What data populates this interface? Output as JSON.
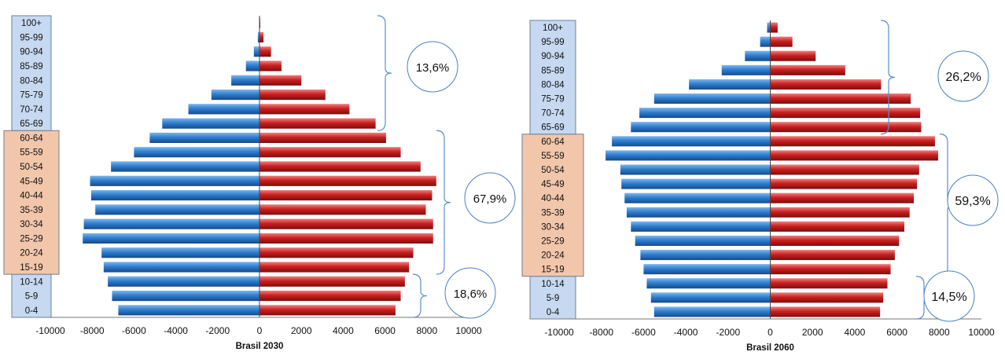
{
  "chart_data": [
    {
      "type": "bar",
      "orientation": "horizontal",
      "title": "",
      "xlabel": "Brasil 2030",
      "ylabel": "",
      "xlim": [
        -10000,
        10000
      ],
      "xticks": [
        "-10000",
        "-8000",
        "-6000",
        "-4000",
        "-2000",
        "0",
        "2000",
        "4000",
        "6000",
        "8000",
        "10000"
      ],
      "categories": [
        "0-4",
        "5-9",
        "10-14",
        "15-19",
        "20-24",
        "25-29",
        "30-34",
        "35-39",
        "40-44",
        "45-49",
        "50-54",
        "55-59",
        "60-64",
        "65-69",
        "70-74",
        "75-79",
        "80-84",
        "85-89",
        "90-94",
        "95-99",
        "100+"
      ],
      "series": [
        {
          "color": "#2e7fd0",
          "values": [
            -6750,
            -7050,
            -7250,
            -7450,
            -7550,
            -8450,
            -8400,
            -7850,
            -8050,
            -8100,
            -7100,
            -6000,
            -5250,
            -4650,
            -3400,
            -2300,
            -1350,
            -650,
            -270,
            -80,
            -15
          ]
        },
        {
          "color": "#cc1f1f",
          "values": [
            6500,
            6750,
            6950,
            7150,
            7350,
            8300,
            8300,
            7950,
            8250,
            8450,
            7700,
            6750,
            6050,
            5550,
            4300,
            3150,
            2000,
            1050,
            550,
            190,
            35
          ]
        }
      ],
      "groups": [
        {
          "label": "18,6%",
          "color": "#c6d9f1",
          "categories": [
            "0-4",
            "5-9",
            "10-14"
          ]
        },
        {
          "label": "67,9%",
          "color": "#f2c6ab",
          "categories": [
            "15-19",
            "20-24",
            "25-29",
            "30-34",
            "35-39",
            "40-44",
            "45-49",
            "50-54",
            "55-59",
            "60-64"
          ]
        },
        {
          "label": "13,6%",
          "color": "#c6d9f1",
          "categories": [
            "65-69",
            "70-74",
            "75-79",
            "80-84",
            "85-89",
            "90-94",
            "95-99",
            "100+"
          ]
        }
      ]
    },
    {
      "type": "bar",
      "orientation": "horizontal",
      "title": "",
      "xlabel": "Brasil 2060",
      "ylabel": "",
      "xlim": [
        -10000,
        10000
      ],
      "xticks": [
        "-10000",
        "-8000",
        "-6000",
        "-4000",
        "-2000",
        "0",
        "2000",
        "4000",
        "6000",
        "8000",
        "10000"
      ],
      "categories": [
        "0-4",
        "5-9",
        "10-14",
        "15-19",
        "20-24",
        "25-29",
        "30-34",
        "35-39",
        "40-44",
        "45-49",
        "50-54",
        "55-59",
        "60-64",
        "65-69",
        "70-74",
        "75-79",
        "80-84",
        "85-89",
        "90-94",
        "95-99",
        "100+"
      ],
      "series": [
        {
          "color": "#2e7fd0",
          "values": [
            -5500,
            -5650,
            -5850,
            -6000,
            -6150,
            -6400,
            -6600,
            -6800,
            -6900,
            -7050,
            -7100,
            -7800,
            -7500,
            -6600,
            -6200,
            -5500,
            -3850,
            -2300,
            -1200,
            -480,
            -150
          ]
        },
        {
          "color": "#cc1f1f",
          "values": [
            5200,
            5350,
            5550,
            5700,
            5900,
            6100,
            6350,
            6600,
            6800,
            6950,
            7050,
            7950,
            7800,
            7150,
            7100,
            6650,
            5250,
            3550,
            2150,
            1050,
            350
          ]
        }
      ],
      "groups": [
        {
          "label": "14,5%",
          "color": "#c6d9f1",
          "categories": [
            "0-4",
            "5-9",
            "10-14"
          ]
        },
        {
          "label": "59,3%",
          "color": "#f2c6ab",
          "categories": [
            "15-19",
            "20-24",
            "25-29",
            "30-34",
            "35-39",
            "40-44",
            "45-49",
            "50-54",
            "55-59",
            "60-64"
          ]
        },
        {
          "label": "26,2%",
          "color": "#c6d9f1",
          "categories": [
            "65-69",
            "70-74",
            "75-79",
            "80-84",
            "85-89",
            "90-94",
            "95-99",
            "100+"
          ]
        }
      ]
    }
  ]
}
